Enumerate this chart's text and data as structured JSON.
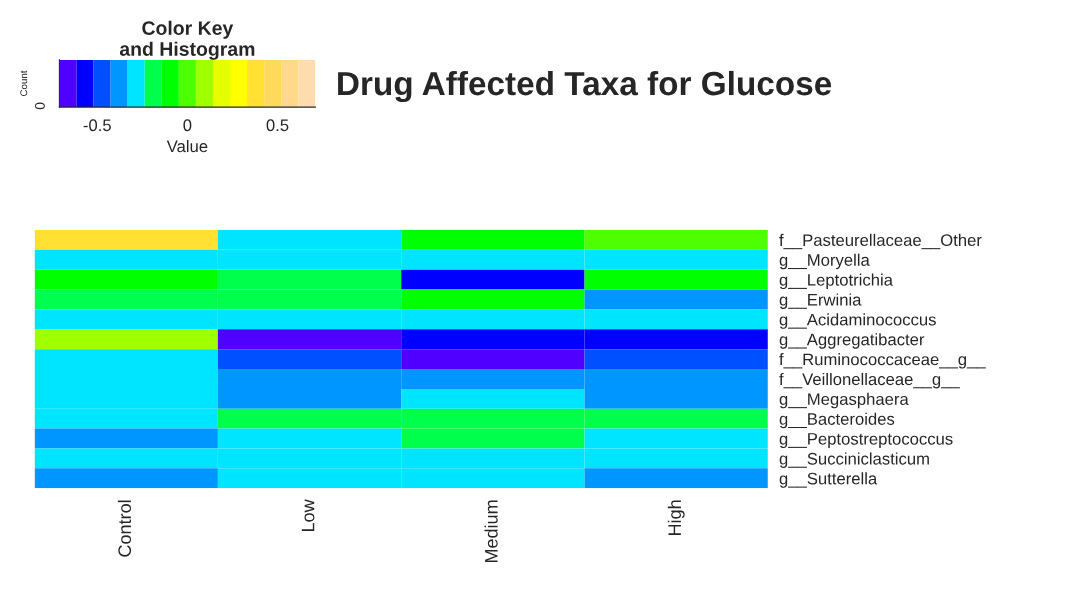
{
  "chart_data": {
    "type": "heatmap",
    "title": "Drug Affected Taxa for Glucose",
    "categories": [
      "Control",
      "Low",
      "Medium",
      "High"
    ],
    "y_categories": [
      "f__Pasteurellaceae__Other",
      "g__Moryella",
      "g__Leptotrichia",
      "g__Erwinia",
      "g__Acidaminococcus",
      "g__Aggregatibacter",
      "f__Ruminococcaceae__g__",
      "f__Veillonellaceae__g__",
      "g__Megasphaera",
      "g__Bacteroides",
      "g__Peptostreptococcus",
      "g__Succiniclasticum",
      "g__Sutterella"
    ],
    "cells": [
      [
        0.38,
        -0.28,
        -0.09,
        0.0
      ],
      [
        -0.28,
        -0.28,
        -0.28,
        -0.28
      ],
      [
        -0.09,
        -0.19,
        -0.57,
        -0.09
      ],
      [
        -0.19,
        -0.19,
        -0.09,
        -0.38
      ],
      [
        -0.28,
        -0.28,
        -0.28,
        -0.28
      ],
      [
        0.09,
        -0.66,
        -0.57,
        -0.57
      ],
      [
        -0.28,
        -0.47,
        -0.66,
        -0.47
      ],
      [
        -0.28,
        -0.38,
        -0.38,
        -0.38
      ],
      [
        -0.28,
        -0.38,
        -0.28,
        -0.38
      ],
      [
        -0.28,
        -0.19,
        -0.19,
        -0.19
      ],
      [
        -0.38,
        -0.28,
        -0.19,
        -0.28
      ],
      [
        -0.28,
        -0.28,
        -0.28,
        -0.28
      ],
      [
        -0.38,
        -0.28,
        -0.28,
        -0.38
      ]
    ],
    "colors": [
      "#5000ff",
      "#0000ff",
      "#0050ff",
      "#0096ff",
      "#00e5ff",
      "#00ff4d",
      "#00ff00",
      "#4dff00",
      "#a0ff00",
      "#e6ff00",
      "#ffff00",
      "#ffe033",
      "#ffd95c",
      "#ffd88a",
      "#ffdcae"
    ],
    "clim": [
      -0.71,
      0.71
    ],
    "cticks": [
      {
        "value": -0.5,
        "label": "-0.5"
      },
      0,
      0.5
    ],
    "clabel": "Value",
    "annotations": [
      "Color Key\nand Histogram",
      "Count",
      "0"
    ]
  }
}
